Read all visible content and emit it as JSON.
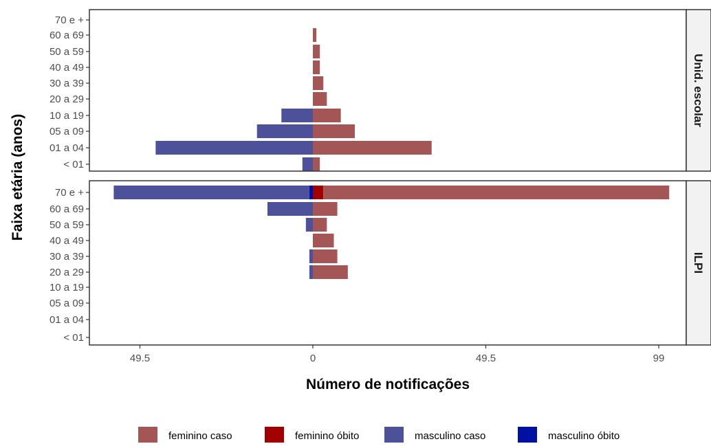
{
  "chart_data": {
    "type": "bar",
    "orientation": "horizontal",
    "xlabel": "Número de notificações",
    "ylabel": "Faixa etária (anos)",
    "categories": [
      "< 01",
      "01 a 04",
      "05 a 09",
      "10 a 19",
      "20 a 29",
      "30 a 39",
      "40 a 49",
      "50 a 59",
      "60 a 69",
      "70 e +"
    ],
    "x_ticks": [
      {
        "value": -49.5,
        "label": "49.5"
      },
      {
        "value": 0,
        "label": "0"
      },
      {
        "value": 49.5,
        "label": "49.5"
      },
      {
        "value": 99,
        "label": "99"
      }
    ],
    "xlim": [
      -64,
      107
    ],
    "grid": false,
    "legend_position": "bottom",
    "series_colors": {
      "feminino caso": "#a45555",
      "feminino óbito": "#a00000",
      "masculino caso": "#4c5199",
      "masculino óbito": "#0010a0"
    },
    "panels": [
      {
        "strip_label": "Unid. escolar",
        "series": [
          {
            "name": "feminino caso",
            "values": [
              2,
              34,
              12,
              8,
              4,
              3,
              2,
              2,
              1,
              0
            ]
          },
          {
            "name": "feminino óbito",
            "values": [
              0,
              0,
              0,
              0,
              0,
              0,
              0,
              0,
              0,
              0
            ]
          },
          {
            "name": "masculino caso",
            "values": [
              3,
              45,
              16,
              9,
              0,
              0,
              0,
              0,
              0,
              0
            ]
          },
          {
            "name": "masculino óbito",
            "values": [
              0,
              0,
              0,
              0,
              0,
              0,
              0,
              0,
              0,
              0
            ]
          }
        ]
      },
      {
        "strip_label": "ILPI",
        "series": [
          {
            "name": "feminino caso",
            "values": [
              0,
              0,
              0,
              0,
              10,
              7,
              6,
              4,
              7,
              99
            ]
          },
          {
            "name": "feminino óbito",
            "values": [
              0,
              0,
              0,
              0,
              0,
              0,
              0,
              0,
              0,
              3
            ]
          },
          {
            "name": "masculino caso",
            "values": [
              0,
              0,
              0,
              0,
              1,
              1,
              0,
              2,
              13,
              56
            ]
          },
          {
            "name": "masculino óbito",
            "values": [
              0,
              0,
              0,
              0,
              0,
              0,
              0,
              0,
              0,
              1
            ]
          }
        ]
      }
    ],
    "legend": [
      {
        "label": "feminino caso",
        "color": "#a45555"
      },
      {
        "label": "feminino óbito",
        "color": "#a00000"
      },
      {
        "label": "masculino caso",
        "color": "#4c5199"
      },
      {
        "label": "masculino óbito",
        "color": "#0010a0"
      }
    ]
  }
}
